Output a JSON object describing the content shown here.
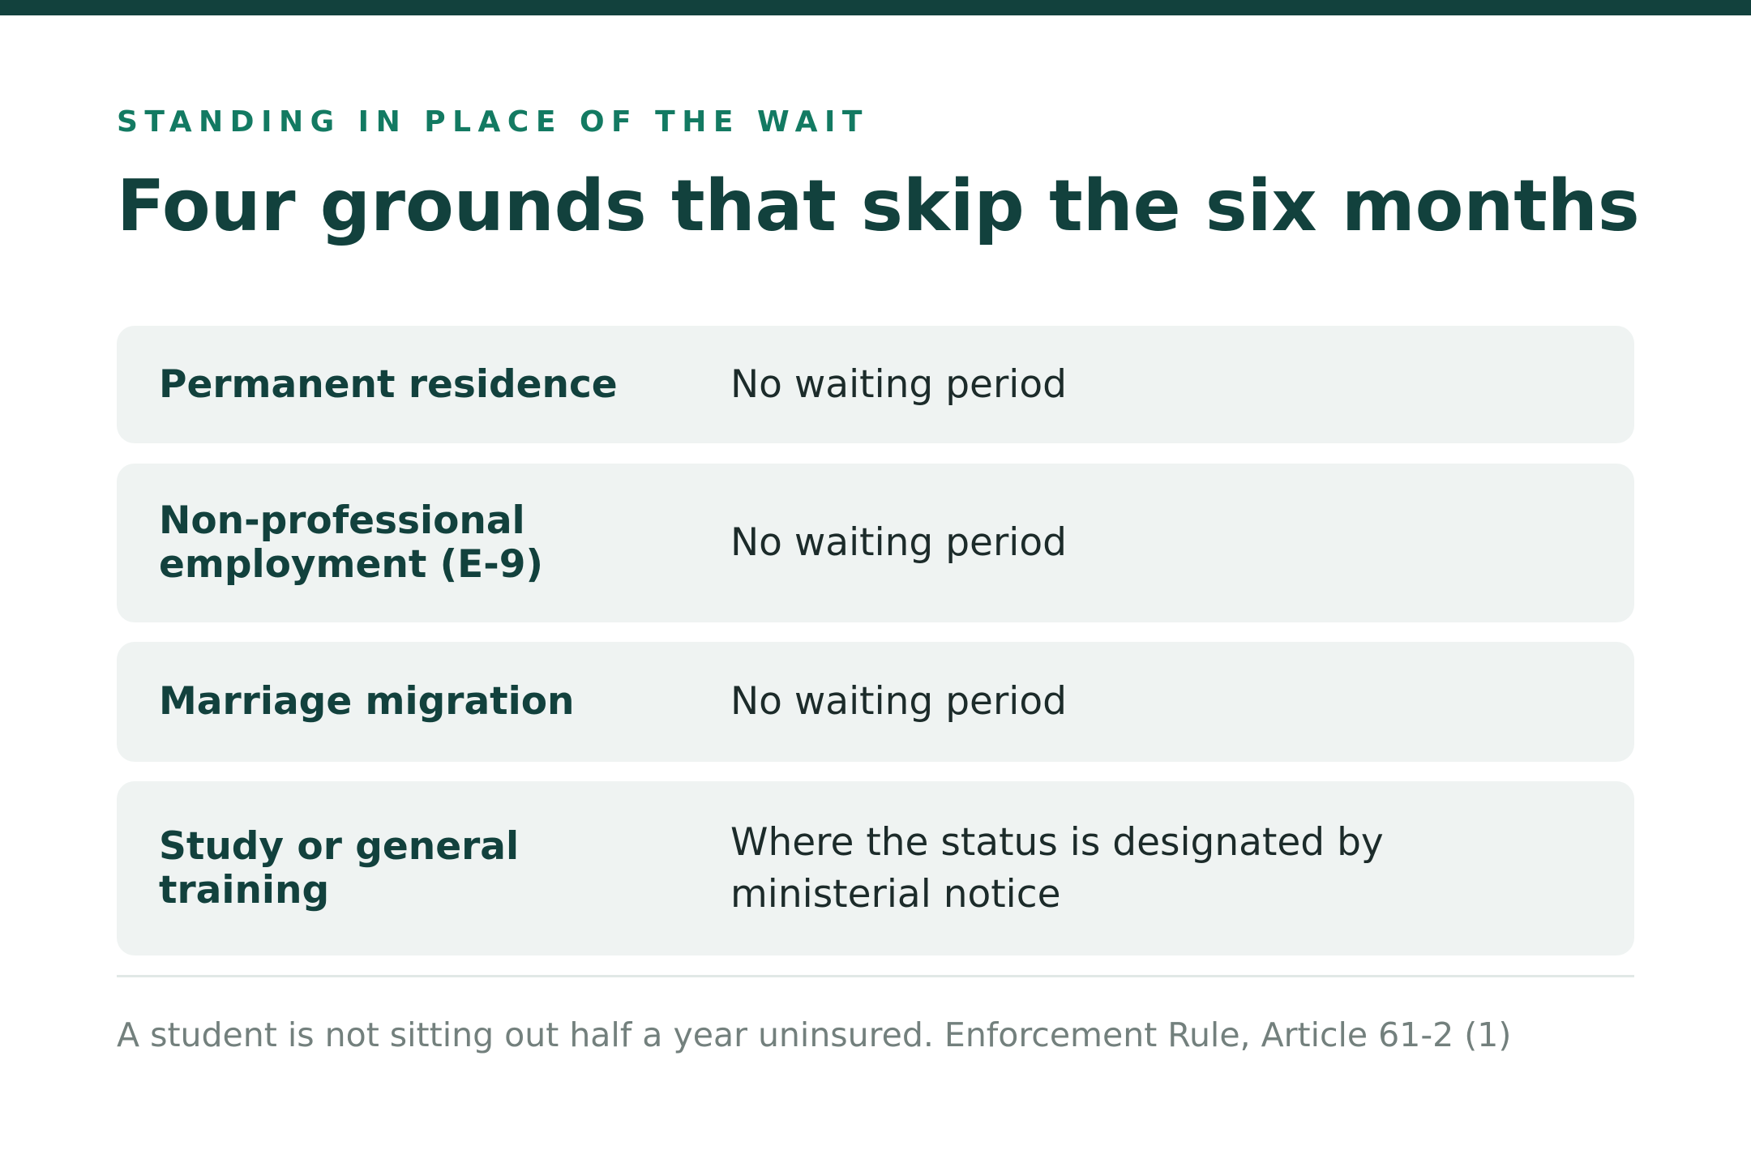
{
  "eyebrow": "STANDING IN PLACE OF THE WAIT",
  "title": "Four grounds that skip the six months",
  "rows": [
    {
      "label": "Permanent residence",
      "value": "No waiting period"
    },
    {
      "label": "Non-professional employment (E-9)",
      "value": "No waiting period"
    },
    {
      "label": "Marriage migration",
      "value": "No waiting period"
    },
    {
      "label": "Study or general training",
      "value": "Where the status is designated by ministerial notice"
    }
  ],
  "footnote": "A student is not sitting out half a year uninsured. Enforcement Rule, Article 61-2 (1)",
  "colors": {
    "accent_bar": "#12413d",
    "eyebrow": "#137a62",
    "row_background": "#eff3f2",
    "footnote": "#73807d"
  }
}
